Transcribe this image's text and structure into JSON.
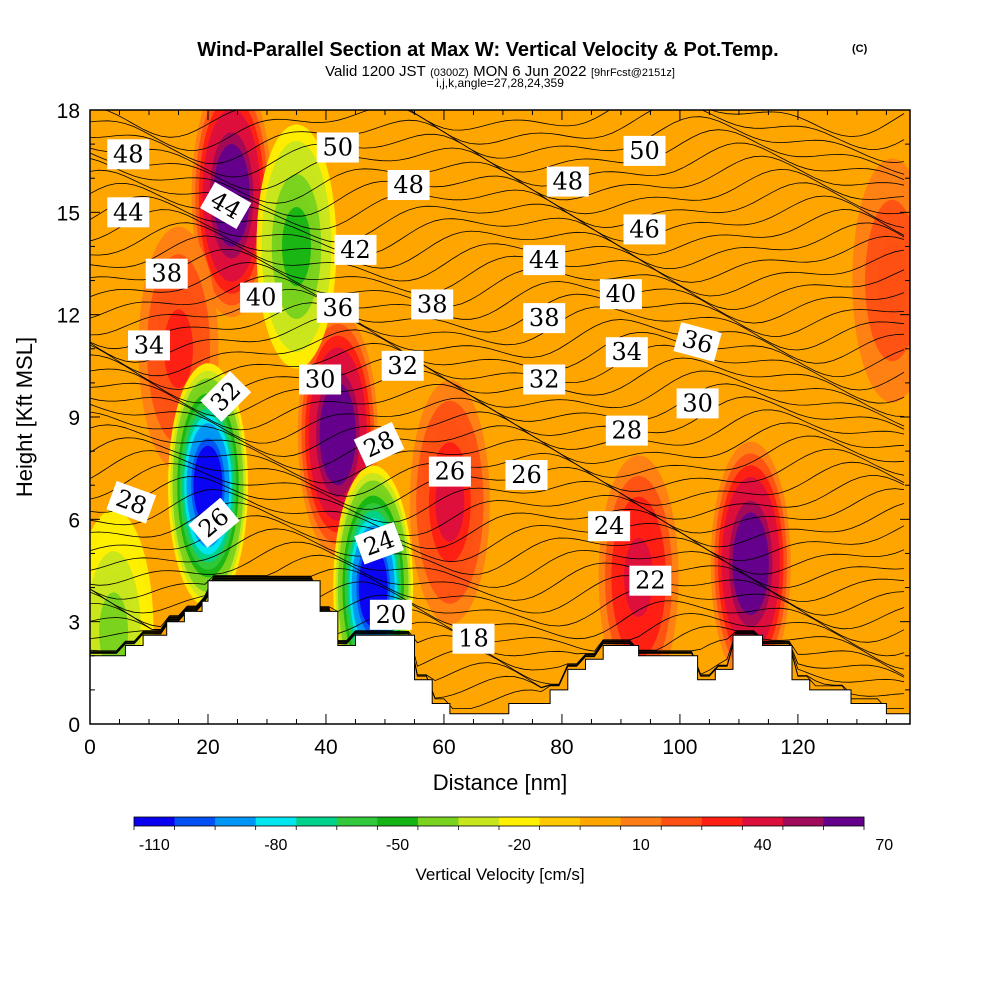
{
  "title": {
    "main": "Wind-Parallel Section at Max W: Vertical Velocity & Pot.Temp.",
    "mark": "(C)",
    "valid_prefix": "Valid 1200 JST",
    "valid_utc": "(0300Z)",
    "valid_date": "MON 6 Jun 2022",
    "fcst": "[9hrFcst@2151z]",
    "params": "i,j,k,angle=27,28,24,359"
  },
  "chart_data": {
    "type": "heatmap",
    "xlabel": "Distance [nm]",
    "ylabel": "Height [Kft MSL]",
    "xlim": [
      0,
      139
    ],
    "ylim": [
      0,
      18
    ],
    "x_ticks": [
      "0",
      "20",
      "40",
      "60",
      "80",
      "100",
      "120"
    ],
    "y_ticks": [
      "0",
      "3",
      "6",
      "9",
      "12",
      "15",
      "18"
    ],
    "terrain": [
      [
        0,
        2.0
      ],
      [
        6,
        2.0
      ],
      [
        6,
        2.3
      ],
      [
        9,
        2.3
      ],
      [
        9,
        2.6
      ],
      [
        13,
        2.6
      ],
      [
        13,
        3.0
      ],
      [
        16,
        3.0
      ],
      [
        16,
        3.3
      ],
      [
        19,
        3.3
      ],
      [
        19,
        3.6
      ],
      [
        20,
        3.6
      ],
      [
        20,
        4.2
      ],
      [
        39,
        4.2
      ],
      [
        39,
        3.3
      ],
      [
        42,
        3.3
      ],
      [
        42,
        2.3
      ],
      [
        45,
        2.3
      ],
      [
        45,
        2.6
      ],
      [
        55,
        2.6
      ],
      [
        55,
        1.3
      ],
      [
        58,
        1.3
      ],
      [
        58,
        0.6
      ],
      [
        61,
        0.6
      ],
      [
        61,
        0.3
      ],
      [
        71,
        0.3
      ],
      [
        71,
        0.6
      ],
      [
        78,
        0.6
      ],
      [
        78,
        1.0
      ],
      [
        81,
        1.0
      ],
      [
        81,
        1.6
      ],
      [
        84,
        1.6
      ],
      [
        84,
        1.9
      ],
      [
        87,
        1.9
      ],
      [
        87,
        2.3
      ],
      [
        93,
        2.3
      ],
      [
        93,
        2.0
      ],
      [
        103,
        2.0
      ],
      [
        103,
        1.3
      ],
      [
        106,
        1.3
      ],
      [
        106,
        1.6
      ],
      [
        109,
        1.6
      ],
      [
        109,
        2.6
      ],
      [
        114,
        2.6
      ],
      [
        114,
        2.3
      ],
      [
        119,
        2.3
      ],
      [
        119,
        1.3
      ],
      [
        122,
        1.3
      ],
      [
        122,
        1.0
      ],
      [
        129,
        1.0
      ],
      [
        129,
        0.6
      ],
      [
        135,
        0.6
      ],
      [
        135,
        0.3
      ],
      [
        139,
        0.3
      ]
    ],
    "updrafts": [
      {
        "x": 24,
        "y": 15.5,
        "w": 70
      },
      {
        "x": 42,
        "y": 8.5,
        "w": 70
      },
      {
        "x": 112,
        "y": 4.7,
        "w": 70
      },
      {
        "x": 93,
        "y": 4.3,
        "w": 40
      },
      {
        "x": 61,
        "y": 6.5,
        "w": 35
      },
      {
        "x": 15,
        "y": 11.0,
        "w": 30
      },
      {
        "x": 136,
        "y": 13.0,
        "w": 20
      }
    ],
    "downdrafts": [
      {
        "x": 20,
        "y": 7.0,
        "w": -110
      },
      {
        "x": 48,
        "y": 4.0,
        "w": -110
      },
      {
        "x": 35,
        "y": 14.0,
        "w": -50
      },
      {
        "x": 4,
        "y": 2.7,
        "w": -40
      }
    ],
    "contour_labels": [
      {
        "text": "48",
        "x": 6.5,
        "y": 16.7,
        "angle": 0
      },
      {
        "text": "44",
        "x": 6.5,
        "y": 15.0,
        "angle": 0
      },
      {
        "text": "38",
        "x": 13,
        "y": 13.2,
        "angle": 0
      },
      {
        "text": "34",
        "x": 10,
        "y": 11.1,
        "angle": 0
      },
      {
        "text": "28",
        "x": 7,
        "y": 6.5,
        "angle": 20
      },
      {
        "text": "44",
        "x": 23,
        "y": 15.2,
        "angle": 30
      },
      {
        "text": "40",
        "x": 29,
        "y": 12.5,
        "angle": 0
      },
      {
        "text": "32",
        "x": 23,
        "y": 9.6,
        "angle": -45
      },
      {
        "text": "26",
        "x": 21,
        "y": 5.9,
        "angle": -40
      },
      {
        "text": "50",
        "x": 42,
        "y": 16.9,
        "angle": 0
      },
      {
        "text": "42",
        "x": 45,
        "y": 13.9,
        "angle": 0
      },
      {
        "text": "36",
        "x": 42,
        "y": 12.2,
        "angle": 0
      },
      {
        "text": "30",
        "x": 39,
        "y": 10.1,
        "angle": 0
      },
      {
        "text": "48",
        "x": 54,
        "y": 15.8,
        "angle": 0
      },
      {
        "text": "38",
        "x": 58,
        "y": 12.3,
        "angle": 0
      },
      {
        "text": "32",
        "x": 53,
        "y": 10.5,
        "angle": 0
      },
      {
        "text": "28",
        "x": 49,
        "y": 8.2,
        "angle": -25
      },
      {
        "text": "24",
        "x": 49,
        "y": 5.3,
        "angle": -20
      },
      {
        "text": "20",
        "x": 51,
        "y": 3.2,
        "angle": 0
      },
      {
        "text": "26",
        "x": 61,
        "y": 7.4,
        "angle": 0
      },
      {
        "text": "18",
        "x": 65,
        "y": 2.5,
        "angle": 0
      },
      {
        "text": "48",
        "x": 81,
        "y": 15.9,
        "angle": 0
      },
      {
        "text": "44",
        "x": 77,
        "y": 13.6,
        "angle": 0
      },
      {
        "text": "38",
        "x": 77,
        "y": 11.9,
        "angle": 0
      },
      {
        "text": "32",
        "x": 77,
        "y": 10.1,
        "angle": 0
      },
      {
        "text": "26",
        "x": 74,
        "y": 7.3,
        "angle": 0
      },
      {
        "text": "50",
        "x": 94,
        "y": 16.8,
        "angle": 0
      },
      {
        "text": "46",
        "x": 94,
        "y": 14.5,
        "angle": 0
      },
      {
        "text": "40",
        "x": 90,
        "y": 12.6,
        "angle": 0
      },
      {
        "text": "34",
        "x": 91,
        "y": 10.9,
        "angle": 0
      },
      {
        "text": "28",
        "x": 91,
        "y": 8.6,
        "angle": 0
      },
      {
        "text": "24",
        "x": 88,
        "y": 5.8,
        "angle": 0
      },
      {
        "text": "22",
        "x": 95,
        "y": 4.2,
        "angle": 0
      },
      {
        "text": "36",
        "x": 103,
        "y": 11.2,
        "angle": 15
      },
      {
        "text": "30",
        "x": 103,
        "y": 9.4,
        "angle": 0
      }
    ],
    "colorbar": {
      "title": "Vertical Velocity [cm/s]",
      "ticks": [
        "-110",
        "-80",
        "-50",
        "-20",
        "10",
        "40",
        "70"
      ],
      "colors": [
        "#0a00f0",
        "#0050f5",
        "#0096f5",
        "#00e6f0",
        "#00d28c",
        "#32c83c",
        "#14b414",
        "#78d21e",
        "#c8e61e",
        "#fff000",
        "#ffc800",
        "#ffa500",
        "#ff7d14",
        "#ff5014",
        "#ff1e14",
        "#dc0f3c",
        "#a00a5a",
        "#64008c"
      ]
    }
  }
}
